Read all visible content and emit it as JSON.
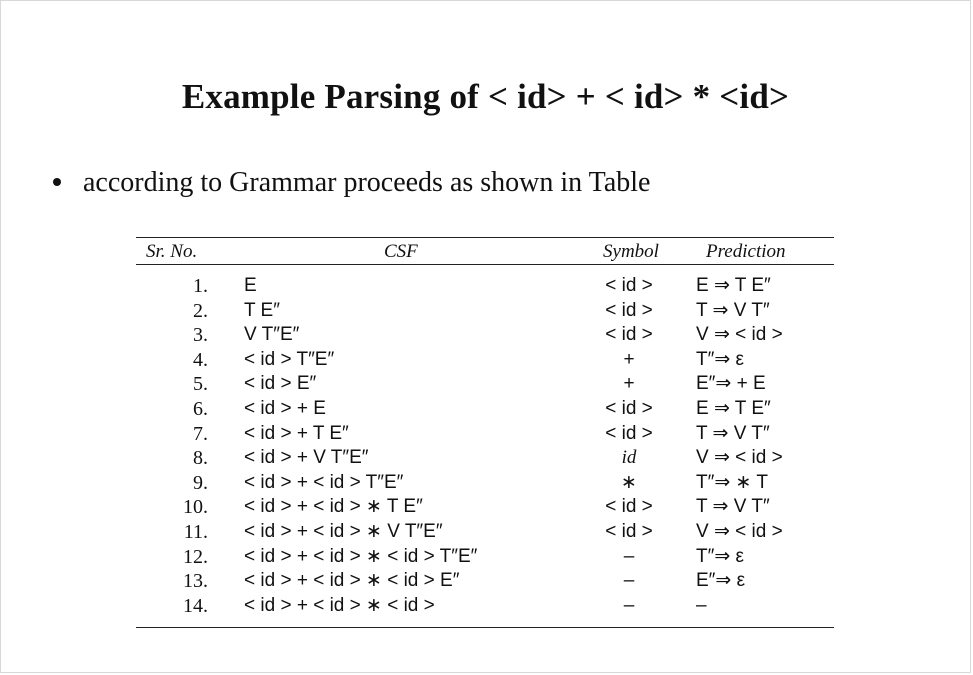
{
  "slide": {
    "title": "Example Parsing of  < id> + < id> * <id>",
    "bullet": "according to Grammar proceeds as shown in Table"
  },
  "table": {
    "headers": {
      "no": "Sr. No.",
      "csf": "CSF",
      "symbol": "Symbol",
      "prediction": "Prediction"
    },
    "rows": [
      {
        "no": "1.",
        "csf": "E",
        "symbol": "< id >",
        "prediction": "E ⇒ T E″"
      },
      {
        "no": "2.",
        "csf": "T E″",
        "symbol": "< id >",
        "prediction": "T ⇒ V T″"
      },
      {
        "no": "3.",
        "csf": "V T″E″",
        "symbol": "< id >",
        "prediction": "V ⇒ < id >"
      },
      {
        "no": "4.",
        "csf": "< id > T″E″",
        "symbol": "+",
        "prediction": "T″⇒ ε"
      },
      {
        "no": "5.",
        "csf": "< id > E″",
        "symbol": "+",
        "prediction": "E″⇒ + E"
      },
      {
        "no": "6.",
        "csf": "< id > + E",
        "symbol": "< id >",
        "prediction": "E ⇒ T E″"
      },
      {
        "no": "7.",
        "csf": "< id > + T E″",
        "symbol": "< id >",
        "prediction": "T ⇒ V T″"
      },
      {
        "no": "8.",
        "csf": "< id > + V T″E″",
        "symbol": "id",
        "prediction": "V ⇒ < id >"
      },
      {
        "no": "9.",
        "csf": "< id > + < id > T″E″",
        "symbol": "∗",
        "prediction": "T″⇒ ∗ T"
      },
      {
        "no": "10.",
        "csf": "< id > + < id > ∗ T E″",
        "symbol": "< id >",
        "prediction": "T ⇒ V T″"
      },
      {
        "no": "11.",
        "csf": "< id > + < id > ∗ V T″E″",
        "symbol": "< id >",
        "prediction": "V ⇒ < id >"
      },
      {
        "no": "12.",
        "csf": "< id > + < id > ∗ < id > T″E″",
        "symbol": "–",
        "prediction": "T″⇒ ε"
      },
      {
        "no": "13.",
        "csf": "< id > + < id > ∗ < id > E″",
        "symbol": "–",
        "prediction": "E″⇒ ε"
      },
      {
        "no": "14.",
        "csf": "< id > + < id > ∗ < id >",
        "symbol": "–",
        "prediction": "–"
      }
    ]
  }
}
